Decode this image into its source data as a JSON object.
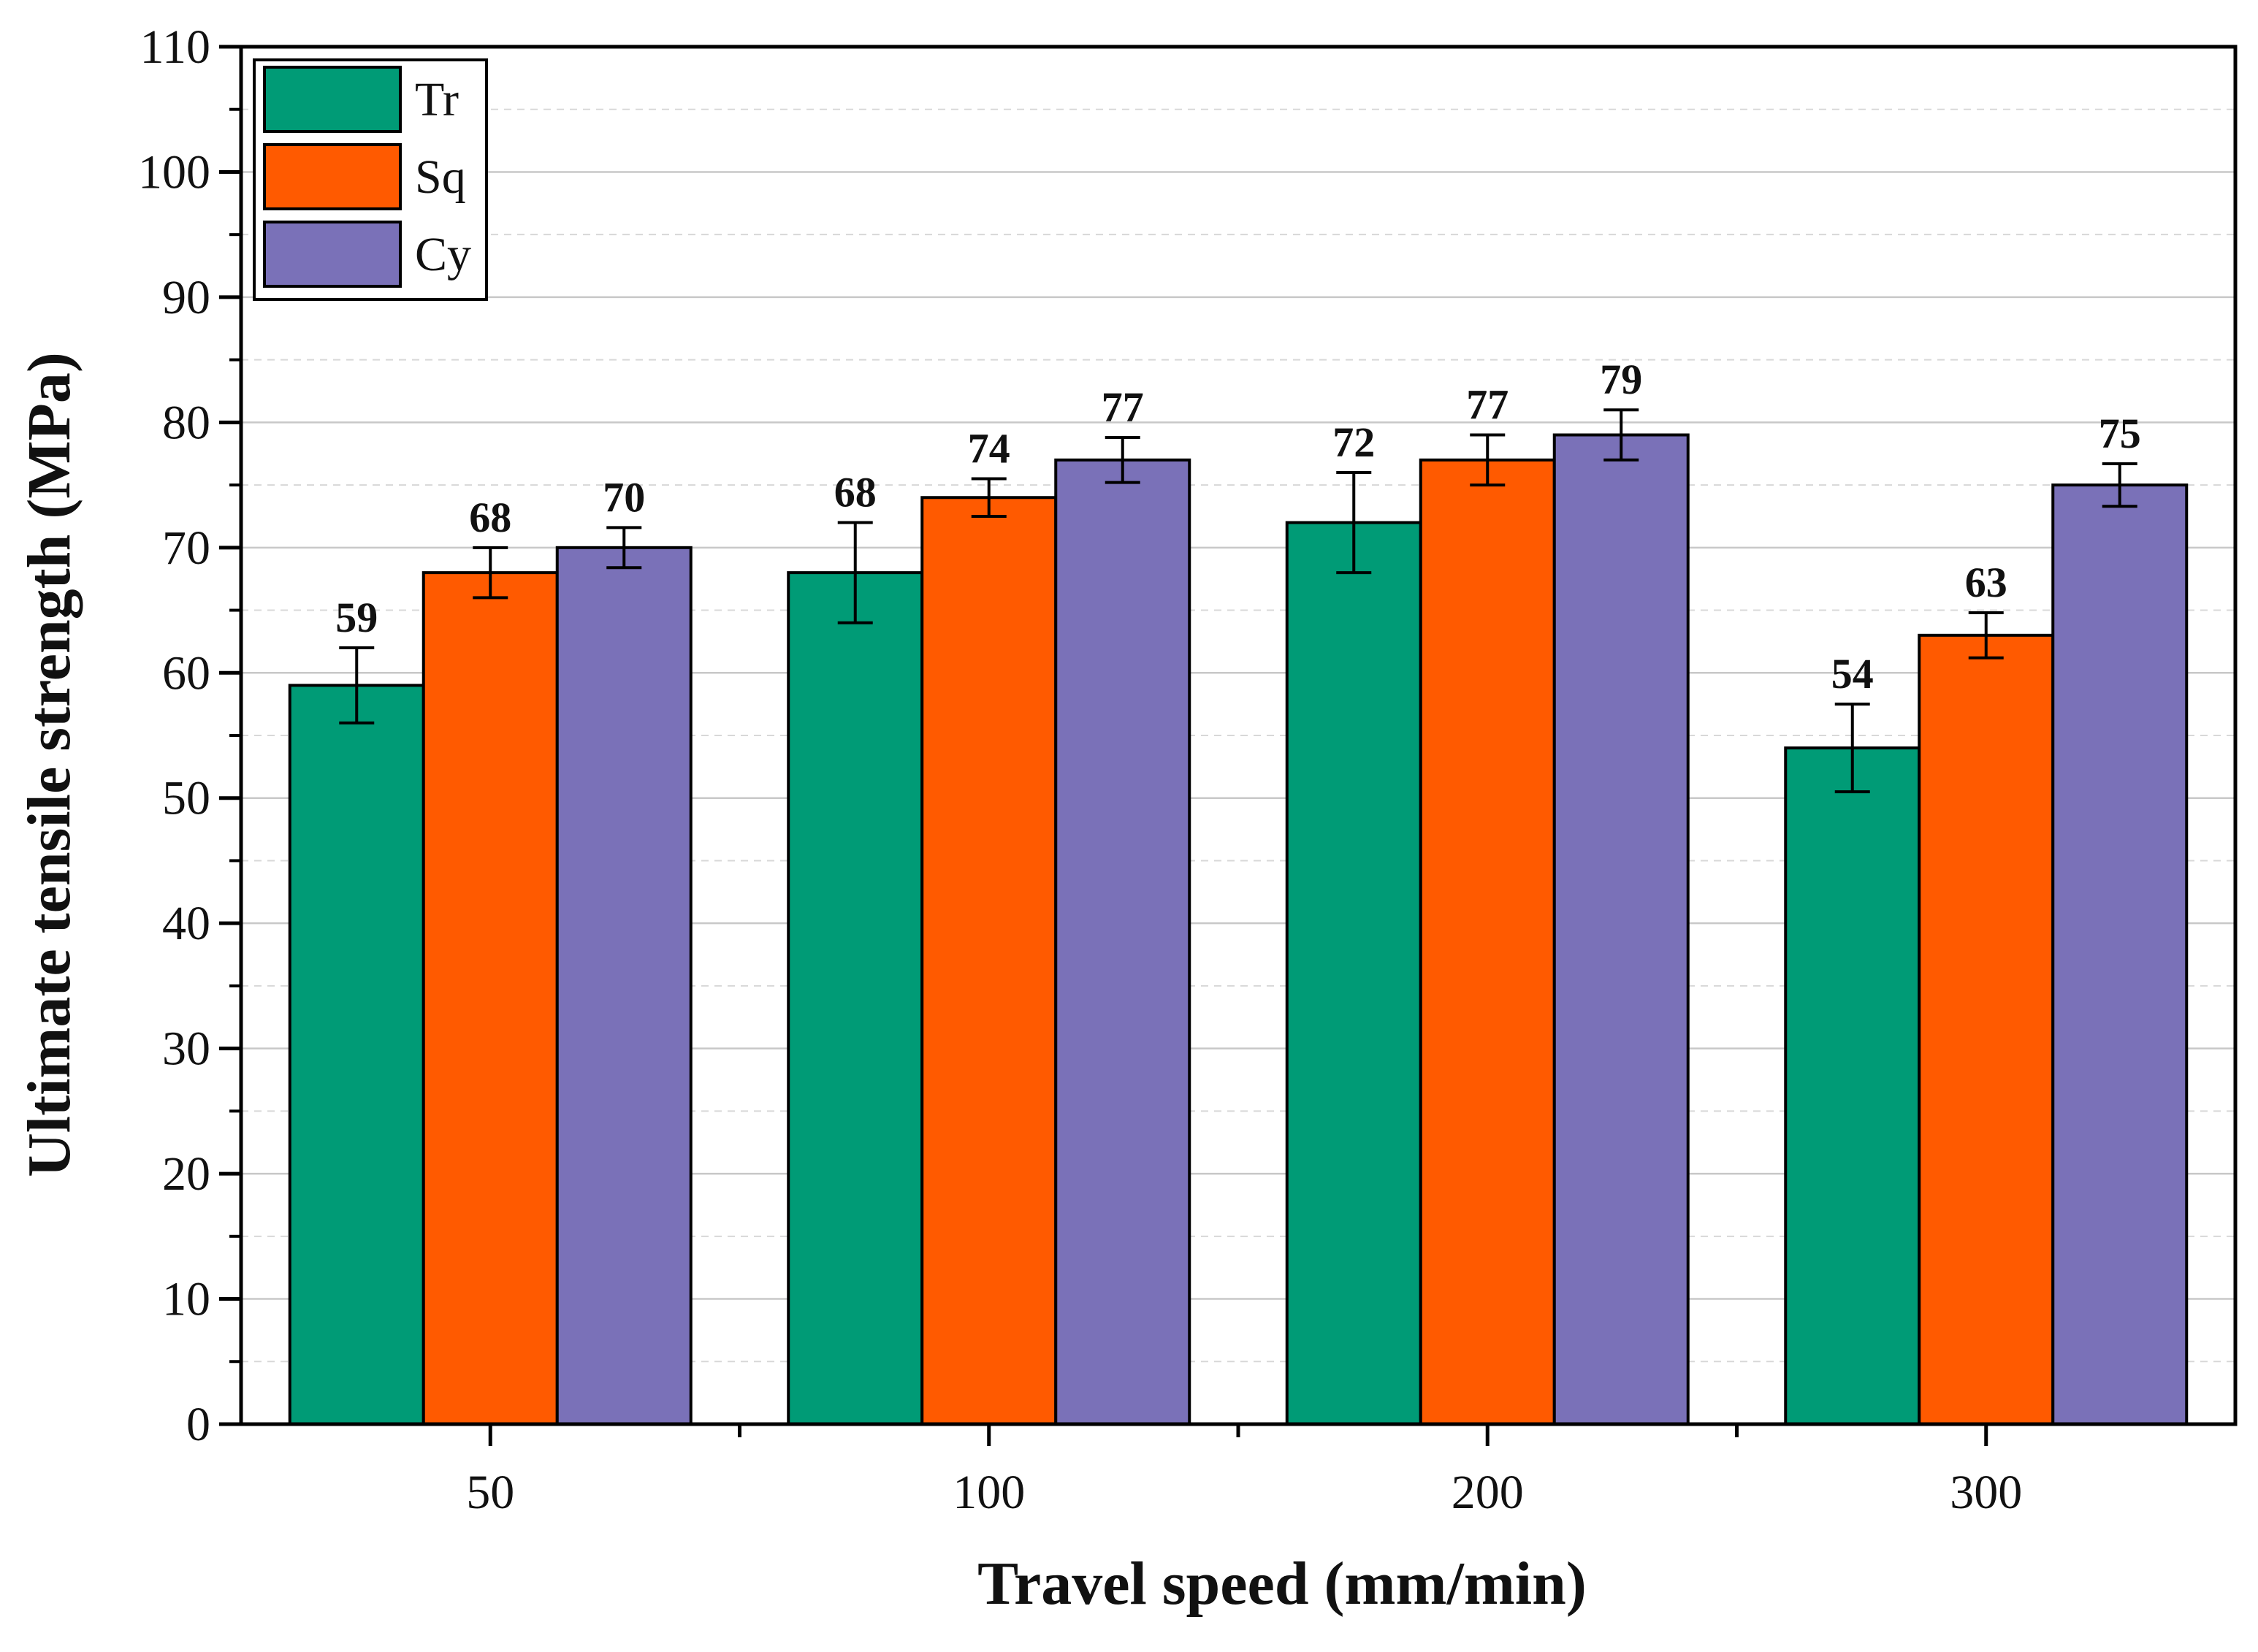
{
  "chart_data": {
    "type": "bar",
    "title": "",
    "xlabel": "Travel speed (mm/min)",
    "ylabel": "Ultimate tensile strength (MPa)",
    "categories": [
      "50",
      "100",
      "200",
      "300"
    ],
    "ylim": [
      0,
      110
    ],
    "yticks": [
      0,
      10,
      20,
      30,
      40,
      50,
      60,
      70,
      80,
      90,
      100,
      110
    ],
    "grid": true,
    "legend_position": "top-left",
    "series": [
      {
        "name": "Tr",
        "color": "#009B76",
        "values": [
          59,
          68,
          72,
          54
        ],
        "errors": [
          3,
          4,
          4,
          3.5
        ]
      },
      {
        "name": "Sq",
        "color": "#FF5A00",
        "values": [
          68,
          74,
          77,
          63
        ],
        "errors": [
          2,
          1.5,
          2,
          1.8
        ]
      },
      {
        "name": "Cy",
        "color": "#7A71B8",
        "values": [
          70,
          77,
          79,
          75
        ],
        "errors": [
          1.6,
          1.8,
          2,
          1.7
        ]
      }
    ]
  }
}
